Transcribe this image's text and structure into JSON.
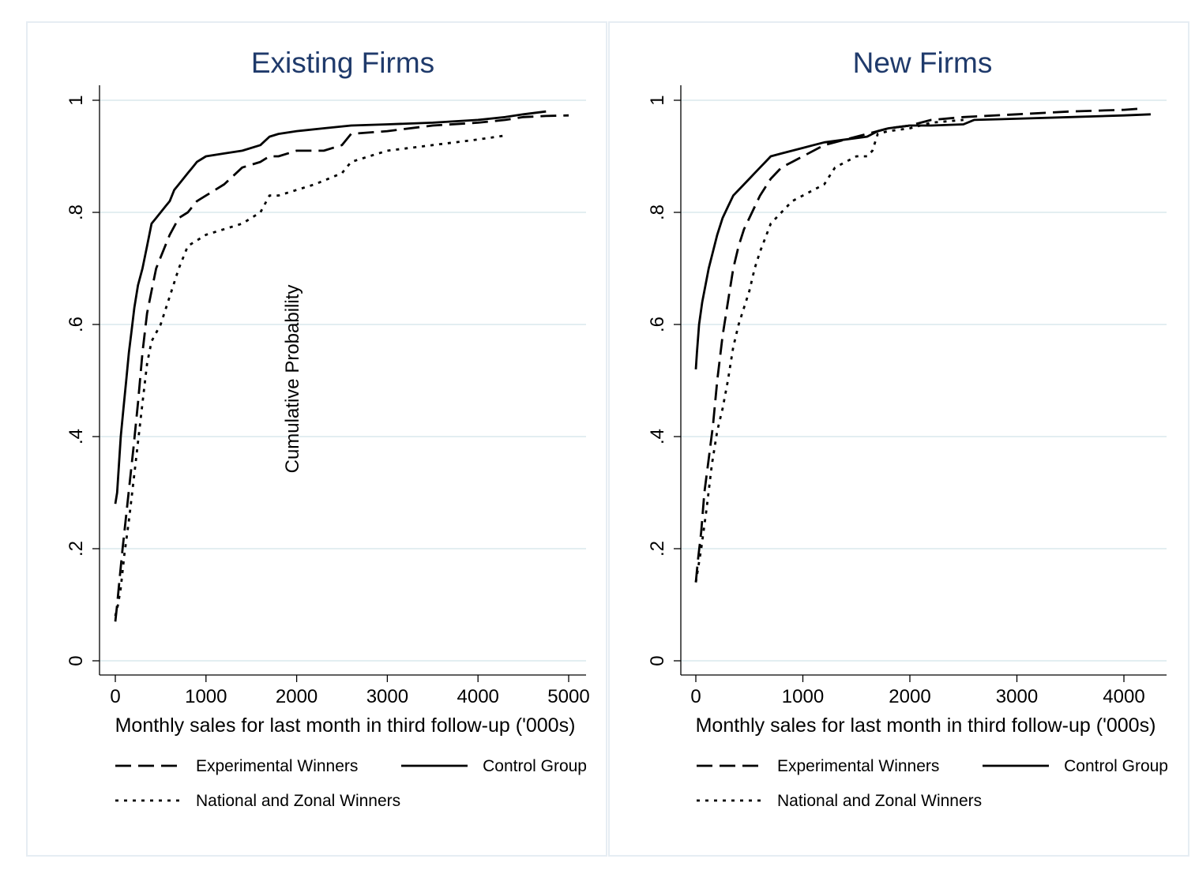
{
  "chart_data": [
    {
      "type": "line",
      "title": "Existing Firms",
      "xlabel": "Monthly sales for last month in third follow-up ('000s)",
      "ylabel": "Cumulative Probability",
      "xlim": [
        0,
        5000
      ],
      "ylim": [
        0,
        1
      ],
      "xticks": [
        "0",
        "1000",
        "2000",
        "3000",
        "4000",
        "5000"
      ],
      "yticks": [
        "0",
        ".2",
        ".4",
        ".6",
        ".8",
        "1"
      ],
      "grid": true,
      "legend_position": "bottom",
      "legend": [
        "Experimental Winners",
        "Control Group",
        "National and Zonal Winners"
      ],
      "series": [
        {
          "name": "Experimental Winners",
          "style": "dashed",
          "x": [
            0,
            20,
            50,
            80,
            120,
            160,
            200,
            250,
            300,
            350,
            400,
            450,
            500,
            600,
            700,
            800,
            900,
            1000,
            1200,
            1400,
            1600,
            1700,
            1800,
            2000,
            2300,
            2500,
            2600,
            3000,
            3500,
            4000,
            4300,
            4500,
            4750,
            5000
          ],
          "y": [
            0.07,
            0.1,
            0.15,
            0.2,
            0.26,
            0.32,
            0.38,
            0.46,
            0.55,
            0.62,
            0.66,
            0.7,
            0.72,
            0.76,
            0.79,
            0.8,
            0.82,
            0.83,
            0.85,
            0.88,
            0.89,
            0.9,
            0.9,
            0.91,
            0.91,
            0.92,
            0.94,
            0.945,
            0.955,
            0.96,
            0.965,
            0.97,
            0.972,
            0.973
          ]
        },
        {
          "name": "Control Group",
          "style": "solid",
          "x": [
            0,
            20,
            40,
            60,
            90,
            120,
            150,
            180,
            210,
            250,
            300,
            350,
            400,
            450,
            500,
            550,
            600,
            650,
            700,
            750,
            800,
            850,
            900,
            1000,
            1200,
            1400,
            1600,
            1700,
            1800,
            2000,
            2300,
            2600,
            3000,
            3500,
            4000,
            4300,
            4500,
            4750
          ],
          "y": [
            0.28,
            0.3,
            0.35,
            0.4,
            0.45,
            0.5,
            0.55,
            0.59,
            0.63,
            0.67,
            0.7,
            0.74,
            0.78,
            0.79,
            0.8,
            0.81,
            0.82,
            0.84,
            0.85,
            0.86,
            0.87,
            0.88,
            0.89,
            0.9,
            0.905,
            0.91,
            0.92,
            0.935,
            0.94,
            0.945,
            0.95,
            0.955,
            0.957,
            0.96,
            0.965,
            0.97,
            0.975,
            0.98
          ]
        },
        {
          "name": "National and Zonal Winners",
          "style": "dotted",
          "x": [
            0,
            30,
            60,
            100,
            150,
            200,
            250,
            300,
            350,
            400,
            500,
            600,
            700,
            800,
            900,
            1000,
            1200,
            1400,
            1600,
            1700,
            1800,
            2000,
            2200,
            2500,
            2600,
            2800,
            3000,
            3500,
            4000,
            4300
          ],
          "y": [
            0.08,
            0.1,
            0.13,
            0.19,
            0.25,
            0.32,
            0.39,
            0.46,
            0.53,
            0.57,
            0.6,
            0.65,
            0.7,
            0.74,
            0.75,
            0.76,
            0.77,
            0.78,
            0.8,
            0.83,
            0.83,
            0.84,
            0.85,
            0.87,
            0.89,
            0.9,
            0.91,
            0.92,
            0.93,
            0.937
          ]
        }
      ]
    },
    {
      "type": "line",
      "title": "New Firms",
      "xlabel": "Monthly sales for last month in third follow-up ('000s)",
      "ylabel": "",
      "xlim": [
        0,
        4250
      ],
      "ylim": [
        0,
        1
      ],
      "xticks": [
        "0",
        "1000",
        "2000",
        "3000",
        "4000"
      ],
      "yticks": [
        "0",
        ".2",
        ".4",
        ".6",
        ".8",
        "1"
      ],
      "grid": true,
      "legend_position": "bottom",
      "legend": [
        "Experimental Winners",
        "Control Group",
        "National and Zonal Winners"
      ],
      "series": [
        {
          "name": "Experimental Winners",
          "style": "dashed",
          "x": [
            0,
            20,
            50,
            80,
            120,
            160,
            200,
            250,
            300,
            350,
            400,
            450,
            500,
            600,
            700,
            800,
            900,
            1000,
            1200,
            1400,
            1600,
            1700,
            1800,
            2000,
            2200,
            2500,
            3000,
            3500,
            4000,
            4150
          ],
          "y": [
            0.14,
            0.18,
            0.23,
            0.3,
            0.36,
            0.42,
            0.5,
            0.58,
            0.64,
            0.7,
            0.74,
            0.77,
            0.79,
            0.83,
            0.86,
            0.88,
            0.89,
            0.9,
            0.92,
            0.93,
            0.94,
            0.945,
            0.95,
            0.955,
            0.965,
            0.97,
            0.975,
            0.98,
            0.983,
            0.985
          ]
        },
        {
          "name": "Control Group",
          "style": "solid",
          "x": [
            0,
            10,
            30,
            60,
            90,
            120,
            160,
            200,
            250,
            300,
            350,
            400,
            450,
            500,
            550,
            600,
            650,
            700,
            800,
            900,
            1000,
            1100,
            1200,
            1400,
            1600,
            1700,
            1800,
            2000,
            2200,
            2500,
            2600,
            3000,
            3500,
            4000,
            4250
          ],
          "y": [
            0.52,
            0.55,
            0.6,
            0.64,
            0.67,
            0.7,
            0.73,
            0.76,
            0.79,
            0.81,
            0.83,
            0.84,
            0.85,
            0.86,
            0.87,
            0.88,
            0.89,
            0.9,
            0.905,
            0.91,
            0.915,
            0.92,
            0.925,
            0.93,
            0.935,
            0.945,
            0.95,
            0.955,
            0.955,
            0.957,
            0.965,
            0.967,
            0.97,
            0.973,
            0.975
          ]
        },
        {
          "name": "National and Zonal Winners",
          "style": "dotted",
          "x": [
            0,
            50,
            100,
            150,
            200,
            250,
            300,
            350,
            400,
            450,
            500,
            550,
            600,
            700,
            800,
            900,
            1000,
            1100,
            1200,
            1300,
            1400,
            1500,
            1600,
            1650,
            1700,
            1800,
            2000,
            2200,
            2500
          ],
          "y": [
            0.14,
            0.2,
            0.27,
            0.35,
            0.41,
            0.45,
            0.5,
            0.56,
            0.6,
            0.63,
            0.66,
            0.7,
            0.73,
            0.78,
            0.8,
            0.82,
            0.83,
            0.84,
            0.85,
            0.88,
            0.89,
            0.9,
            0.9,
            0.91,
            0.94,
            0.945,
            0.95,
            0.96,
            0.965
          ]
        }
      ]
    }
  ]
}
